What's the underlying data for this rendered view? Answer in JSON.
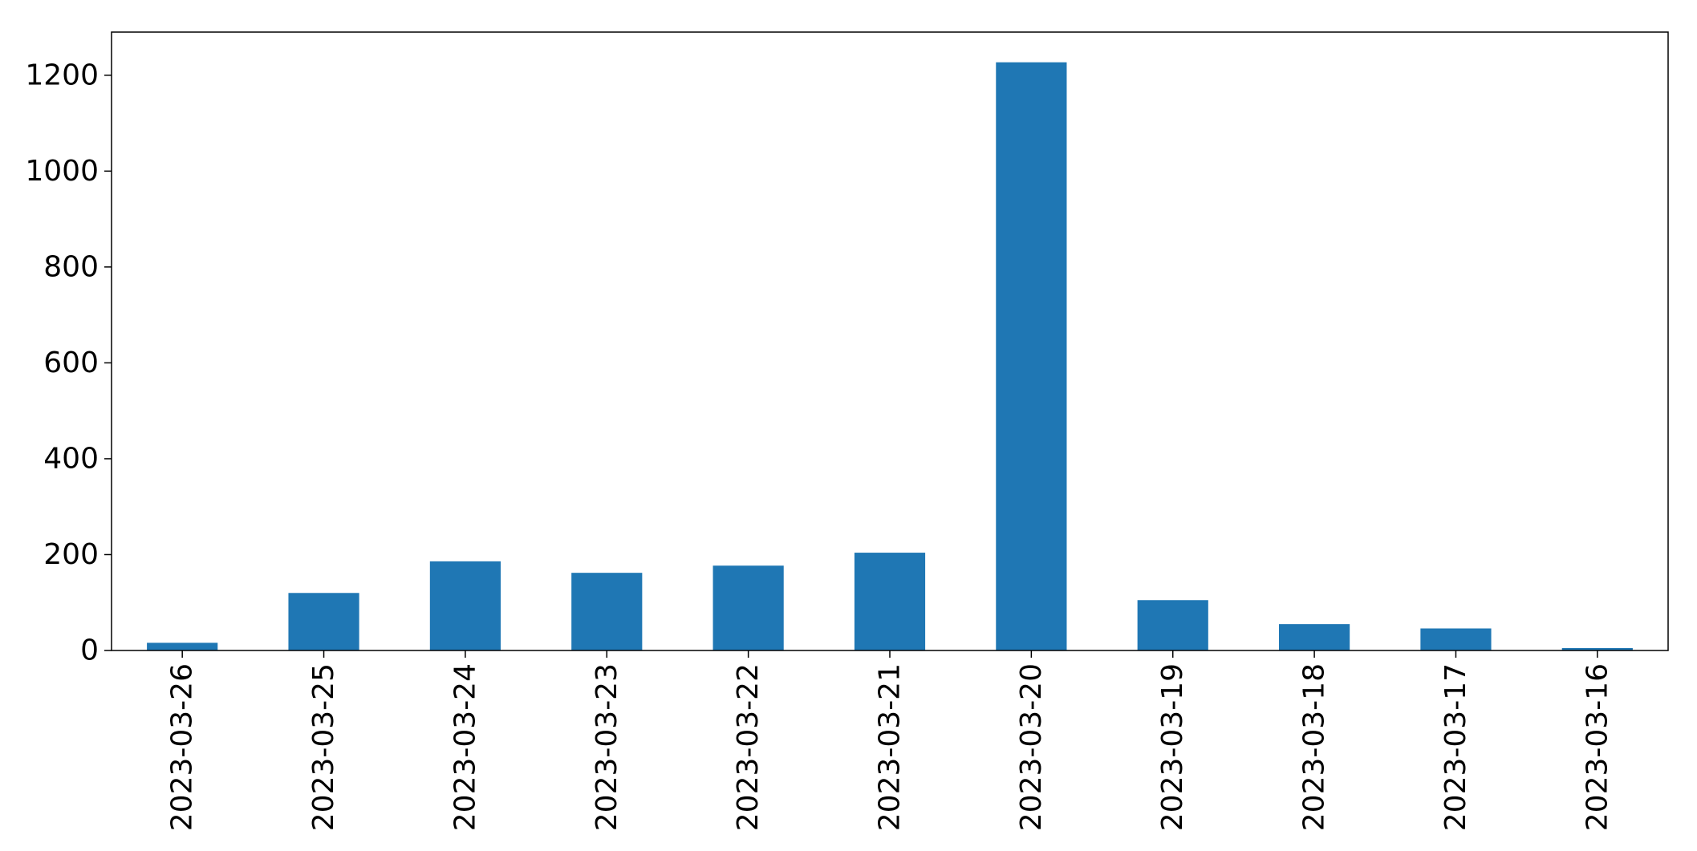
{
  "chart_data": {
    "type": "bar",
    "title": "",
    "xlabel": "",
    "ylabel": "",
    "categories": [
      "2023-03-26",
      "2023-03-25",
      "2023-03-24",
      "2023-03-23",
      "2023-03-22",
      "2023-03-21",
      "2023-03-20",
      "2023-03-19",
      "2023-03-18",
      "2023-03-17",
      "2023-03-16"
    ],
    "values": [
      16,
      120,
      186,
      162,
      177,
      204,
      1227,
      105,
      55,
      46,
      5
    ],
    "ylim": [
      0,
      1290
    ],
    "yticks": [
      0,
      200,
      400,
      600,
      800,
      1000,
      1200
    ],
    "ytick_labels": [
      "0",
      "200",
      "400",
      "600",
      "800",
      "1000",
      "1200"
    ],
    "grid": false,
    "legend": "none",
    "bar_color": "#1f77b4"
  }
}
